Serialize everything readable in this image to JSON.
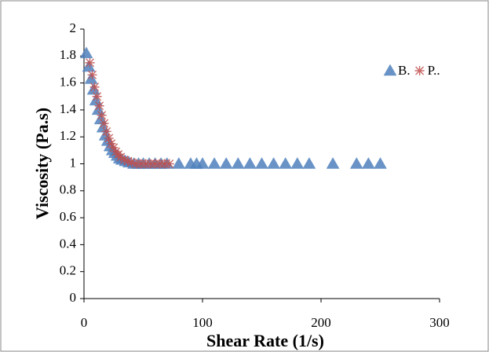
{
  "chart_data": {
    "type": "scatter",
    "x_label": "Shear Rate (1/s)",
    "y_label": "Viscosity (Pa.s)",
    "xlim": [
      0,
      300
    ],
    "xticks": [
      0,
      100,
      200,
      300
    ],
    "ylim": [
      0,
      2
    ],
    "yticks": [
      0,
      0.2,
      0.4,
      0.6,
      0.8,
      1,
      1.2,
      1.4,
      1.6,
      1.8,
      2
    ],
    "grid": false,
    "legend": "right",
    "series": [
      {
        "name": "B.",
        "color": "#4f81bd",
        "marker": "triangle",
        "x": [
          2,
          4,
          6,
          8,
          10,
          12,
          14,
          16,
          18,
          20,
          22,
          24,
          26,
          28,
          30,
          32,
          35,
          38,
          42,
          46,
          50,
          55,
          60,
          65,
          70,
          80,
          90,
          95,
          100,
          110,
          120,
          130,
          140,
          150,
          160,
          170,
          180,
          190,
          210,
          230,
          240,
          250
        ],
        "values": [
          1.82,
          1.72,
          1.63,
          1.55,
          1.47,
          1.4,
          1.33,
          1.27,
          1.21,
          1.17,
          1.13,
          1.1,
          1.08,
          1.06,
          1.04,
          1.03,
          1.02,
          1.01,
          1,
          1,
          1,
          1,
          1,
          1,
          1,
          1,
          1,
          1,
          1,
          1,
          1,
          1,
          1,
          1,
          1,
          1,
          1,
          1,
          1,
          1,
          1,
          1
        ]
      },
      {
        "name": "P..",
        "color": "#c0504d",
        "marker": "asterisk",
        "x": [
          5,
          7,
          9,
          11,
          13,
          15,
          17,
          19,
          21,
          23,
          25,
          27,
          29,
          31,
          34,
          37,
          40,
          44,
          48,
          52,
          56,
          60,
          64,
          68,
          72
        ],
        "values": [
          1.75,
          1.66,
          1.57,
          1.5,
          1.43,
          1.36,
          1.3,
          1.24,
          1.19,
          1.15,
          1.12,
          1.09,
          1.07,
          1.05,
          1.03,
          1.02,
          1.01,
          1,
          1,
          1,
          1,
          1,
          1,
          1,
          1
        ]
      }
    ]
  }
}
